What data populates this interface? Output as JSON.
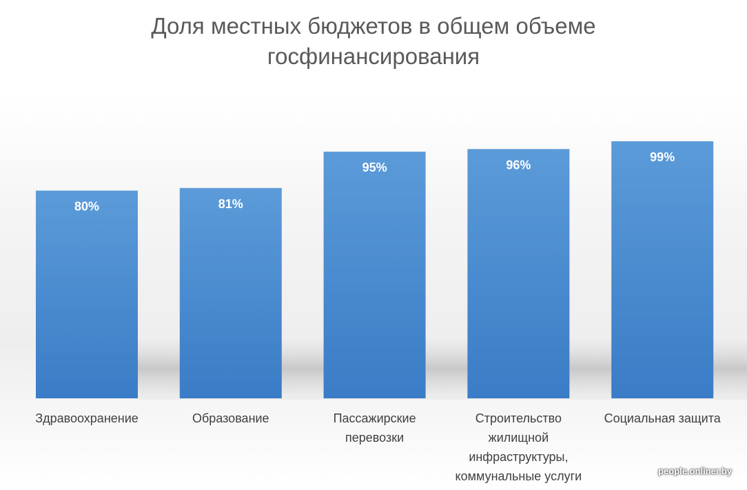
{
  "chart_data": {
    "type": "bar",
    "title": "Доля местных бюджетов в общем объеме госфинансирования",
    "categories": [
      "Здравоохранение",
      "Образование",
      "Пассажирские перевозки",
      "Строительство жилищной инфраструктуры, коммунальные услуги",
      "Социальная защита"
    ],
    "category_lines": [
      [
        "Здравоохранение"
      ],
      [
        "Образование"
      ],
      [
        "Пассажирские",
        "перевозки"
      ],
      [
        "Строительство",
        "жилищной",
        "инфраструктуры,",
        "коммунальные услуги"
      ],
      [
        "Социальная защита"
      ]
    ],
    "values": [
      80,
      81,
      95,
      96,
      99
    ],
    "data_labels": [
      "80%",
      "81%",
      "95%",
      "96%",
      "99%"
    ],
    "unit": "%",
    "ylim": [
      0,
      100
    ],
    "grid": false,
    "bar_color": "#4a8fd4",
    "bar_color_dark": "#3a7cc6"
  },
  "watermark": "people.onliner.by"
}
